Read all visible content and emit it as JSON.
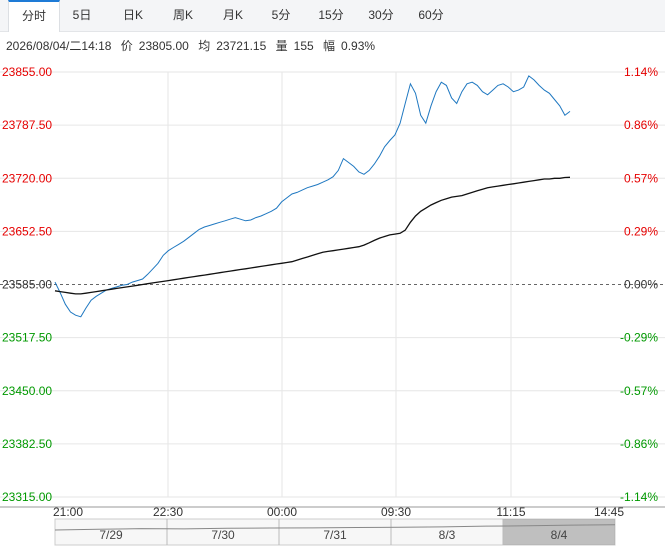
{
  "tabs": [
    {
      "label": "分时",
      "active": true
    },
    {
      "label": "5日",
      "active": false
    },
    {
      "label": "日K",
      "active": false
    },
    {
      "label": "周K",
      "active": false
    },
    {
      "label": "月K",
      "active": false
    },
    {
      "label": "5分",
      "active": false
    },
    {
      "label": "15分",
      "active": false
    },
    {
      "label": "30分",
      "active": false
    },
    {
      "label": "60分",
      "active": false
    }
  ],
  "info": {
    "datetime": "2026/08/04/二14:18",
    "price_label": "价",
    "price": "23805.00",
    "avg_label": "均",
    "avg": "23721.15",
    "vol_label": "量",
    "volume": "155",
    "chg_label": "幅",
    "change": "0.93%"
  },
  "colors": {
    "up": "#e60000",
    "down": "#009900",
    "flat": "#333333",
    "price_line": "#1f78c1",
    "avg_line": "#111111",
    "accent": "#1e7bd6"
  },
  "chart_data": {
    "type": "line",
    "prev_close": 23585.0,
    "ylim": [
      23315.0,
      23855.0
    ],
    "y_ticks": [
      "23855.00",
      "23787.50",
      "23720.00",
      "23652.50",
      "23585.00",
      "23517.50",
      "23450.00",
      "23382.50",
      "23315.00"
    ],
    "pct_ticks": [
      "1.14%",
      "0.86%",
      "0.57%",
      "0.29%",
      "0.00%",
      "-0.29%",
      "-0.57%",
      "-0.86%",
      "-1.14%"
    ],
    "x_ticks": [
      "21:00",
      "22:30",
      "00:00",
      "09:30",
      "11:15",
      "14:45"
    ],
    "series": [
      {
        "values": [
          23588,
          23575,
          23560,
          23550,
          23546,
          23544,
          23555,
          23565,
          23570,
          23574,
          23578,
          23580,
          23582,
          23584,
          23585,
          23588,
          23590,
          23592,
          23598,
          23605,
          23612,
          23622,
          23628,
          23632,
          23636,
          23640,
          23645,
          23650,
          23655,
          23658,
          23660,
          23662,
          23664,
          23666,
          23668,
          23670,
          23668,
          23666,
          23667,
          23670,
          23672,
          23675,
          23678,
          23682,
          23690,
          23695,
          23700,
          23702,
          23705,
          23708,
          23710,
          23712,
          23715,
          23718,
          23722,
          23730,
          23745,
          23740,
          23735,
          23728,
          23725,
          23730,
          23738,
          23748,
          23760,
          23768,
          23775,
          23790,
          23815,
          23840,
          23828,
          23800,
          23790,
          23812,
          23830,
          23842,
          23838,
          23822,
          23815,
          23830,
          23840,
          23842,
          23838,
          23830,
          23826,
          23832,
          23838,
          23840,
          23836,
          23830,
          23832,
          23836,
          23850,
          23845,
          23838,
          23832,
          23828,
          23820,
          23812,
          23800,
          23805
        ]
      },
      {
        "values": [
          23577,
          23576,
          23575,
          23574,
          23573,
          23573,
          23574,
          23575,
          23576,
          23577,
          23578,
          23579,
          23580,
          23581,
          23582,
          23583,
          23584,
          23585,
          23586,
          23587,
          23588,
          23589,
          23590,
          23591,
          23592,
          23593,
          23594,
          23595,
          23596,
          23597,
          23598,
          23599,
          23600,
          23601,
          23602,
          23603,
          23604,
          23605,
          23606,
          23607,
          23608,
          23609,
          23610,
          23611,
          23612,
          23613,
          23614,
          23616,
          23618,
          23620,
          23622,
          23624,
          23626,
          23627,
          23628,
          23629,
          23630,
          23631,
          23632,
          23633,
          23635,
          23638,
          23641,
          23644,
          23646,
          23648,
          23649,
          23650,
          23654,
          23664,
          23672,
          23678,
          23682,
          23686,
          23689,
          23692,
          23694,
          23696,
          23697,
          23698,
          23700,
          23702,
          23704,
          23706,
          23708,
          23709,
          23710,
          23711,
          23712,
          23713,
          23714,
          23715,
          23716,
          23717,
          23718,
          23719,
          23719,
          23720,
          23720,
          23721,
          23721.15
        ]
      }
    ],
    "minimap": {
      "dates": [
        "7/29",
        "7/30",
        "7/31",
        "8/3",
        "8/4"
      ],
      "selected": "8/4"
    }
  }
}
